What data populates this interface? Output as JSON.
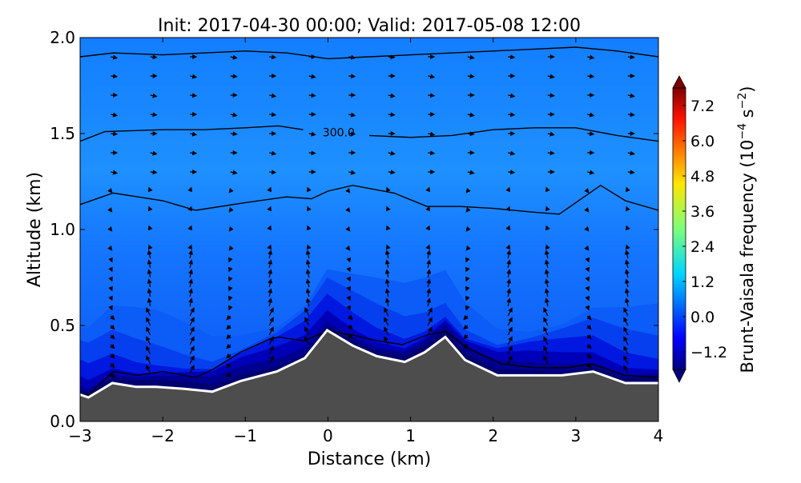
{
  "chart_data": {
    "type": "heatmap",
    "title": "Init: 2017-04-30 00:00; Valid: 2017-05-08 12:00",
    "xlabel": "Distance (km)",
    "ylabel": "Altitude (km)",
    "xlim": [
      -3,
      4
    ],
    "ylim": [
      0,
      2.0
    ],
    "xticks": [
      "−3",
      "−2",
      "−1",
      "0",
      "1",
      "2",
      "3",
      "4"
    ],
    "xtick_values": [
      -3,
      -2,
      -1,
      0,
      1,
      2,
      3,
      4
    ],
    "yticks": [
      "0.0",
      "0.5",
      "1.0",
      "1.5",
      "2.0"
    ],
    "ytick_values": [
      0,
      0.5,
      1.0,
      1.5,
      2.0
    ],
    "colorbar": {
      "label": "Brunt-Vaisala frequency (10",
      "label_exp1": "−4",
      "label_mid": " s",
      "label_exp2": "−2",
      "label_end": ")",
      "range": [
        -1.8,
        7.8
      ],
      "ticks": [
        "7.2",
        "6.0",
        "4.8",
        "3.6",
        "2.4",
        "1.2",
        "0.0",
        "−1.2"
      ],
      "tick_values": [
        7.2,
        6.0,
        4.8,
        3.6,
        2.4,
        1.2,
        0.0,
        -1.2
      ],
      "extend": "both",
      "colormap": "jet"
    },
    "terrain": {
      "x": [
        -3,
        -2.9,
        -2.61,
        -2.32,
        -2.08,
        -1.74,
        -1.4,
        -1.06,
        -0.62,
        -0.28,
        -0.01,
        0.3,
        0.59,
        0.93,
        1.17,
        1.42,
        1.66,
        2.05,
        2.44,
        2.83,
        3.21,
        3.6,
        4
      ],
      "z": [
        0.14,
        0.125,
        0.2,
        0.18,
        0.18,
        0.17,
        0.155,
        0.21,
        0.26,
        0.33,
        0.475,
        0.395,
        0.34,
        0.31,
        0.36,
        0.44,
        0.32,
        0.24,
        0.24,
        0.24,
        0.26,
        0.2,
        0.2
      ],
      "color": "#4d4d4d"
    },
    "theta_contours": [
      {
        "x": [
          -3,
          -2.6,
          -2,
          -1.5,
          -1,
          -0.5,
          0,
          0.5,
          1,
          1.5,
          2,
          2.5,
          3,
          3.5,
          4
        ],
        "z": [
          1.9,
          1.92,
          1.91,
          1.92,
          1.93,
          1.92,
          1.89,
          1.9,
          1.91,
          1.92,
          1.93,
          1.94,
          1.95,
          1.93,
          1.9
        ]
      },
      {
        "x": [
          -3,
          -2.7,
          -2,
          -1.5,
          -1,
          -0.6,
          -0.3
        ],
        "z": [
          1.46,
          1.51,
          1.52,
          1.52,
          1.53,
          1.54,
          1.52
        ]
      },
      {
        "x": [
          0.5,
          1,
          1.5,
          2,
          2.5,
          3,
          3.5,
          4
        ],
        "z": [
          1.49,
          1.48,
          1.49,
          1.52,
          1.53,
          1.53,
          1.49,
          1.46
        ]
      },
      {
        "x": [
          -3,
          -2.6,
          -2.3,
          -2,
          -1.6,
          -1,
          -0.5,
          -0.2,
          0,
          0.3,
          0.8,
          1.2,
          1.6,
          2,
          2.5,
          2.8,
          3.1,
          3.3,
          3.6,
          4
        ],
        "z": [
          1.13,
          1.19,
          1.17,
          1.15,
          1.1,
          1.14,
          1.17,
          1.16,
          1.2,
          1.23,
          1.19,
          1.12,
          1.12,
          1.11,
          1.09,
          1.08,
          1.17,
          1.23,
          1.15,
          1.1
        ]
      },
      {
        "x": [
          -3,
          -2.9,
          -2.6,
          -2.3,
          -2,
          -1.6,
          -1.4,
          -1.06,
          -0.7,
          -0.6,
          -0.3,
          0,
          0.3,
          0.6,
          0.9,
          1.2,
          1.42,
          1.7,
          2.1,
          2.5,
          2.9,
          3.2,
          3.6,
          4
        ],
        "z": [
          0.14,
          0.14,
          0.26,
          0.24,
          0.26,
          0.23,
          0.27,
          0.36,
          0.43,
          0.44,
          0.42,
          0.47,
          0.45,
          0.42,
          0.4,
          0.45,
          0.47,
          0.38,
          0.3,
          0.28,
          0.28,
          0.3,
          0.24,
          0.23
        ]
      }
    ],
    "contour_label": "300.0",
    "contour_label_pos": [
      0.13,
      1.51
    ],
    "quiver": {
      "x": [
        -2.63,
        -2.15,
        -1.67,
        -1.18,
        -0.71,
        -0.23,
        0.25,
        0.73,
        1.21,
        1.69,
        2.18,
        2.66,
        3.14,
        3.63
      ],
      "z": [
        1.9,
        1.7,
        1.5,
        1.3,
        1.1,
        0.9,
        0.8,
        0.7,
        0.6,
        0.5,
        0.45,
        0.4,
        0.35,
        0.3
      ]
    },
    "colors": {
      "background": "#1a78ff",
      "upper": "#1e8cff",
      "low": "#0000d0",
      "lowest": "#000070"
    }
  }
}
